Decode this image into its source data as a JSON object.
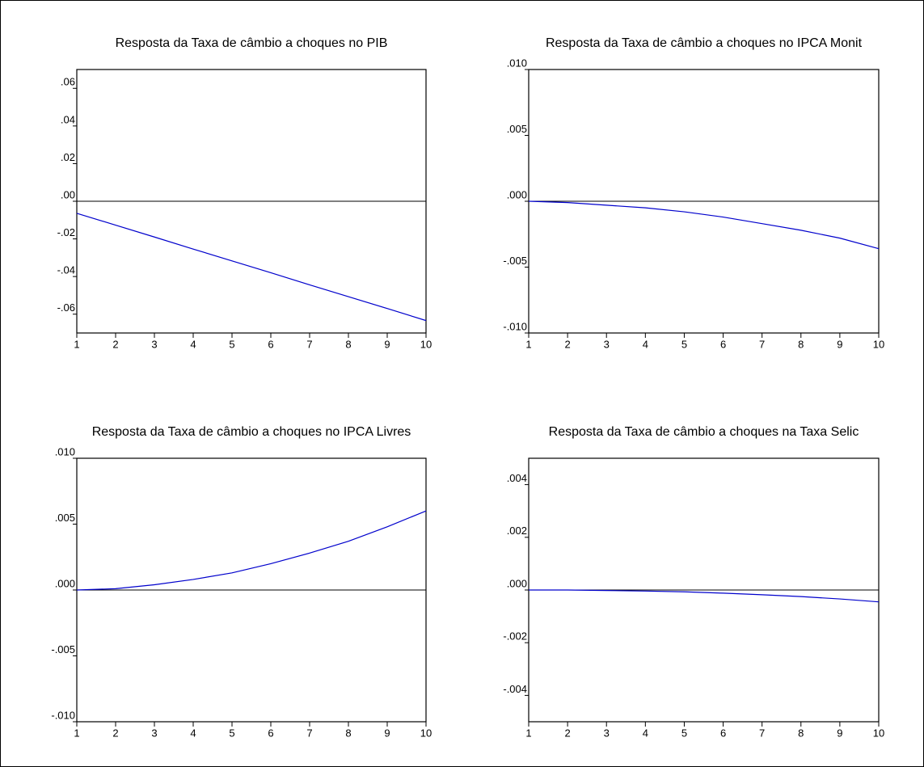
{
  "chart_data": [
    {
      "type": "line",
      "title": "Resposta da Taxa de câmbio a choques no PIB",
      "x": [
        1,
        2,
        3,
        4,
        5,
        6,
        7,
        8,
        9,
        10
      ],
      "series": [
        {
          "color": "#0000cc",
          "values": [
            -0.0064,
            -0.0127,
            -0.019,
            -0.0254,
            -0.0317,
            -0.038,
            -0.0444,
            -0.0507,
            -0.057,
            -0.0634
          ]
        }
      ],
      "xlim": [
        1,
        10
      ],
      "xticks": [
        1,
        2,
        3,
        4,
        5,
        6,
        7,
        8,
        9,
        10
      ],
      "ylim": [
        -0.07,
        0.07
      ],
      "yticks": [
        {
          "value": -0.06,
          "label": "-.06"
        },
        {
          "value": -0.04,
          "label": "-.04"
        },
        {
          "value": -0.02,
          "label": "-.02"
        },
        {
          "value": 0,
          "label": ".00"
        },
        {
          "value": 0.02,
          "label": ".02"
        },
        {
          "value": 0.04,
          "label": ".04"
        },
        {
          "value": 0.06,
          "label": ".06"
        }
      ]
    },
    {
      "type": "line",
      "title": "Resposta da Taxa de câmbio a choques no IPCA Monit",
      "x": [
        1,
        2,
        3,
        4,
        5,
        6,
        7,
        8,
        9,
        10
      ],
      "series": [
        {
          "color": "#0000cc",
          "values": [
            0,
            -0.0001,
            -0.0003,
            -0.0005,
            -0.0008,
            -0.0012,
            -0.0017,
            -0.0022,
            -0.0028,
            -0.0036
          ]
        }
      ],
      "xlim": [
        1,
        10
      ],
      "xticks": [
        1,
        2,
        3,
        4,
        5,
        6,
        7,
        8,
        9,
        10
      ],
      "ylim": [
        -0.01,
        0.01
      ],
      "yticks": [
        {
          "value": -0.01,
          "label": "-.010"
        },
        {
          "value": -0.005,
          "label": "-.005"
        },
        {
          "value": 0,
          "label": ".000"
        },
        {
          "value": 0.005,
          "label": ".005"
        },
        {
          "value": 0.01,
          "label": ".010"
        }
      ]
    },
    {
      "type": "line",
      "title": "Resposta da Taxa de câmbio a choques no IPCA Livres",
      "x": [
        1,
        2,
        3,
        4,
        5,
        6,
        7,
        8,
        9,
        10
      ],
      "series": [
        {
          "color": "#0000cc",
          "values": [
            0,
            0.0001,
            0.0004,
            0.0008,
            0.0013,
            0.002,
            0.0028,
            0.0037,
            0.0048,
            0.006
          ]
        }
      ],
      "xlim": [
        1,
        10
      ],
      "xticks": [
        1,
        2,
        3,
        4,
        5,
        6,
        7,
        8,
        9,
        10
      ],
      "ylim": [
        -0.01,
        0.01
      ],
      "yticks": [
        {
          "value": -0.01,
          "label": "-.010"
        },
        {
          "value": -0.005,
          "label": "-.005"
        },
        {
          "value": 0,
          "label": ".000"
        },
        {
          "value": 0.005,
          "label": ".005"
        },
        {
          "value": 0.01,
          "label": ".010"
        }
      ]
    },
    {
      "type": "line",
      "title": "Resposta da Taxa de câmbio a choques na Taxa Selic",
      "x": [
        1,
        2,
        3,
        4,
        5,
        6,
        7,
        8,
        9,
        10
      ],
      "series": [
        {
          "color": "#0000cc",
          "values": [
            0,
            0,
            -2e-05,
            -4e-05,
            -7e-05,
            -0.00012,
            -0.00018,
            -0.00025,
            -0.00034,
            -0.00045
          ]
        }
      ],
      "xlim": [
        1,
        10
      ],
      "xticks": [
        1,
        2,
        3,
        4,
        5,
        6,
        7,
        8,
        9,
        10
      ],
      "ylim": [
        -0.005,
        0.005
      ],
      "yticks": [
        {
          "value": -0.004,
          "label": "-.004"
        },
        {
          "value": -0.002,
          "label": "-.002"
        },
        {
          "value": 0,
          "label": ".000"
        },
        {
          "value": 0.002,
          "label": ".002"
        },
        {
          "value": 0.004,
          "label": ".004"
        }
      ]
    }
  ]
}
